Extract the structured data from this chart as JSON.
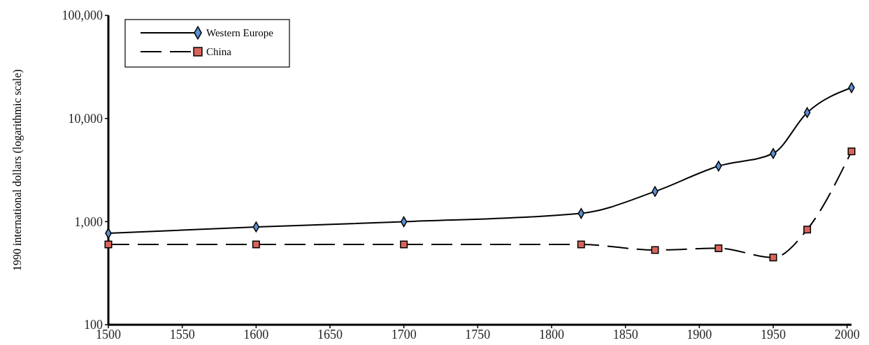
{
  "chart_data": {
    "type": "line",
    "ylabel": "1990 international dollars (logarithmic scale)",
    "log": "y",
    "xlim": [
      1500,
      2003
    ],
    "xticks": [
      1500,
      1550,
      1600,
      1650,
      1700,
      1750,
      1800,
      1850,
      1900,
      1950,
      2000
    ],
    "ylim": [
      100,
      100000
    ],
    "yticks": [
      {
        "value": 100,
        "label": "100"
      },
      {
        "value": 1000,
        "label": "1,000"
      },
      {
        "value": 10000,
        "label": "10,000"
      },
      {
        "value": 100000,
        "label": "100,000"
      }
    ],
    "grid": false,
    "legend": "top left",
    "series": [
      {
        "name": "Western Europe",
        "color": "#5b8fd0",
        "marker": "diamond",
        "line_style": "solid",
        "x": [
          1500,
          1600,
          1700,
          1820,
          1870,
          1913,
          1950,
          1973,
          2003
        ],
        "values": [
          771,
          889,
          997,
          1202,
          1960,
          3457,
          4578,
          11417,
          19900
        ]
      },
      {
        "name": "China",
        "color": "#d9645a",
        "marker": "square",
        "line_style": "dashed",
        "x": [
          1500,
          1600,
          1700,
          1820,
          1870,
          1913,
          1950,
          1973,
          2003
        ],
        "values": [
          600,
          600,
          600,
          600,
          530,
          552,
          448,
          838,
          4800
        ]
      }
    ]
  }
}
